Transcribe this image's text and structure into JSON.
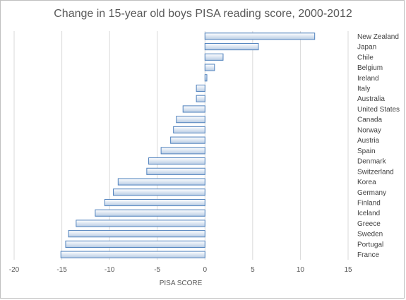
{
  "chart_data": {
    "type": "bar",
    "orientation": "horizontal",
    "title": "Change in 15-year old boys PISA reading score, 2000-2012",
    "xlabel": "PISA SCORE",
    "ylabel": "",
    "xlim": [
      -20,
      15
    ],
    "xticks": [
      -20,
      -15,
      -10,
      -5,
      0,
      5,
      10,
      15
    ],
    "grid": "vertical",
    "categories": [
      "New Zealand",
      "Japan",
      "Chile",
      "Belgium",
      "Ireland",
      "Italy",
      "Australia",
      "United States",
      "Canada",
      "Norway",
      "Austria",
      "Spain",
      "Denmark",
      "Switzerland",
      "Korea",
      "Germany",
      "Finland",
      "Iceland",
      "Greece",
      "Sweden",
      "Portugal",
      "France"
    ],
    "values": [
      11.5,
      5.6,
      1.9,
      1.0,
      0.2,
      -0.9,
      -0.9,
      -2.3,
      -3.0,
      -3.3,
      -3.6,
      -4.6,
      -5.9,
      -6.1,
      -9.1,
      -9.6,
      -10.5,
      -11.5,
      -13.5,
      -14.3,
      -14.6,
      -15.1
    ],
    "colors": {
      "bar_fill_top": "#ffffff",
      "bar_fill_bottom": "#b8cce4",
      "bar_stroke": "#4f81bd",
      "grid": "#d9d9d9"
    }
  }
}
